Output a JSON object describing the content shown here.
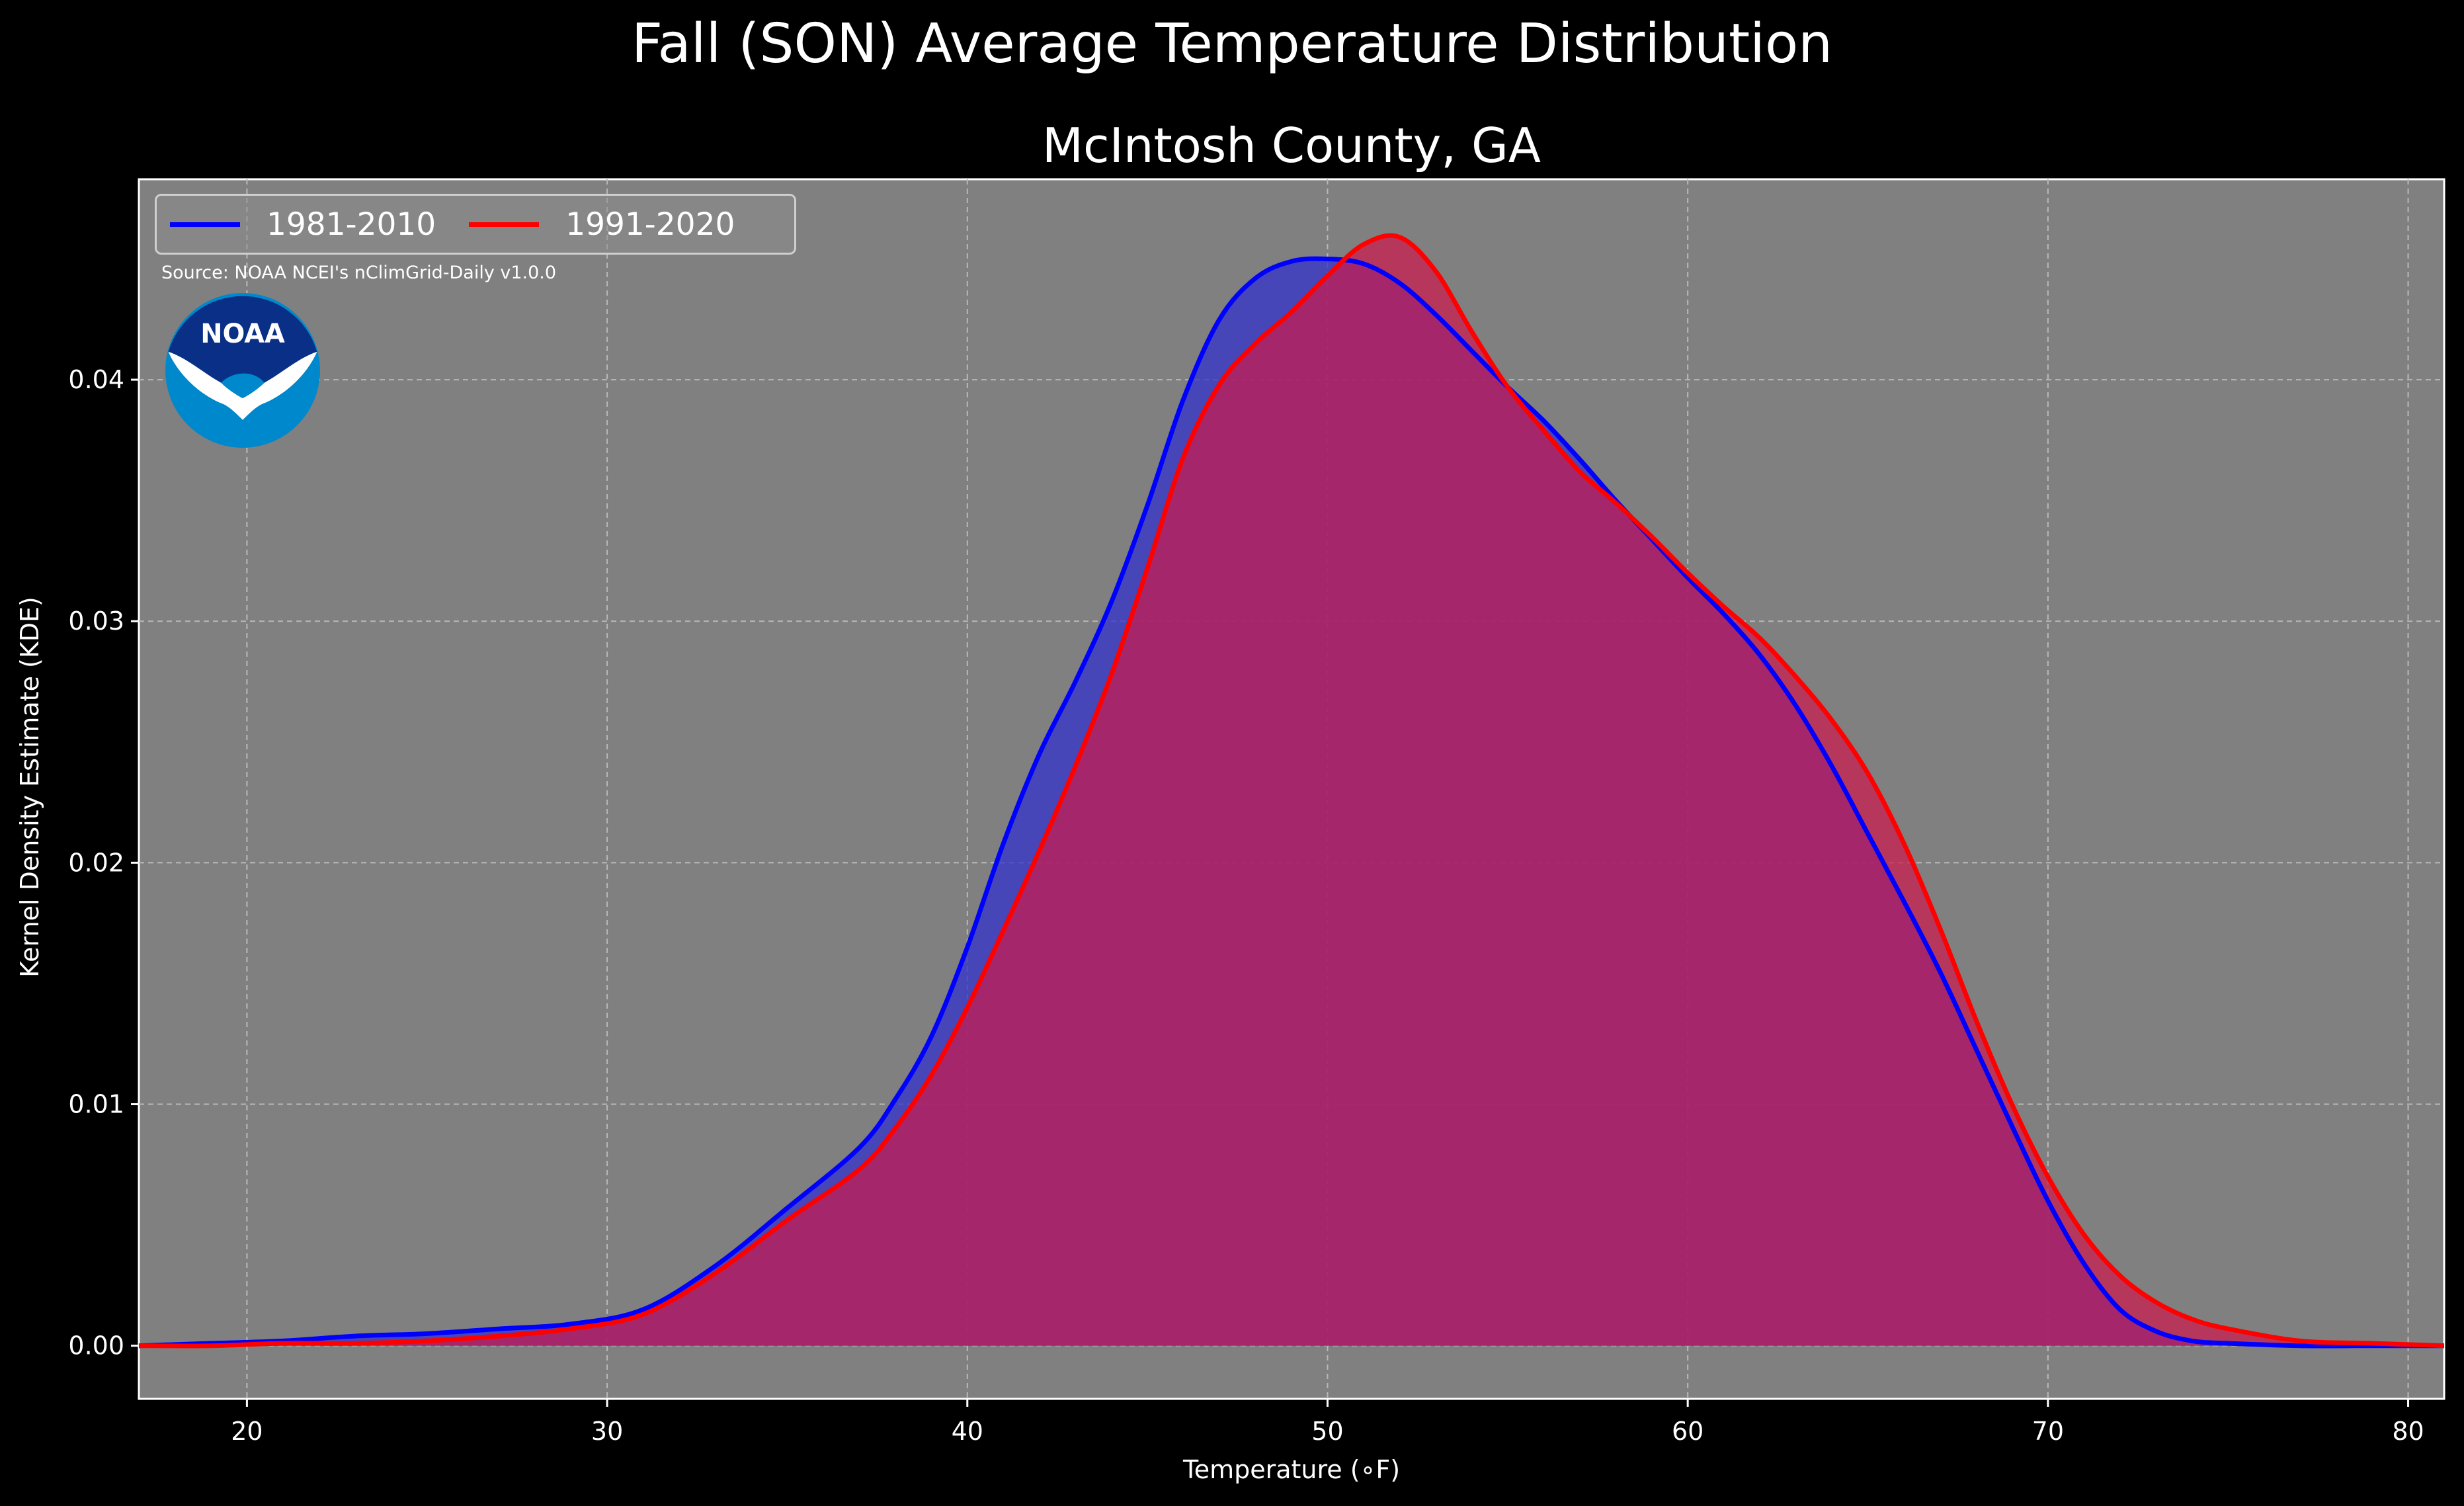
{
  "title": "Fall (SON) Average Temperature Distribution",
  "subtitle": "McIntosh County, GA",
  "source_note": "Source: NOAA NCEI's nClimGrid-Daily v1.0.0",
  "logo_text": "NOAA",
  "colors": {
    "background": "#000000",
    "plot_bg": "#808080",
    "series_1981": "#0000ff",
    "series_1991": "#ff0000",
    "fill_1981": "#3333cc",
    "fill_1991": "#cc1a4d"
  },
  "chart_data": {
    "type": "area",
    "xlabel": "Temperature (∘F)",
    "ylabel": "Kernel Density Estimate (KDE)",
    "xlim": [
      17,
      81
    ],
    "ylim": [
      -0.0022,
      0.0483
    ],
    "xticks": [
      "20",
      "30",
      "40",
      "50",
      "60",
      "70",
      "80"
    ],
    "yticks": [
      "0.00",
      "0.01",
      "0.02",
      "0.03",
      "0.04"
    ],
    "grid": true,
    "legend_position": "top-left",
    "series": [
      {
        "name": "1981-2010",
        "color": "#0000ff",
        "x": [
          17,
          19,
          21,
          23,
          25,
          27,
          29,
          31,
          33,
          35,
          37,
          38,
          39,
          40,
          41,
          42,
          43,
          44,
          45,
          46,
          47,
          48,
          49,
          50,
          51,
          52,
          53,
          54,
          55,
          56,
          57,
          58,
          59,
          60,
          61,
          62,
          63,
          64,
          65,
          66,
          67,
          68,
          69,
          70,
          71,
          72,
          73,
          74,
          75,
          77,
          79,
          81
        ],
        "y": [
          0,
          0.0001,
          0.0002,
          0.0004,
          0.0005,
          0.0007,
          0.0009,
          0.0015,
          0.0033,
          0.0057,
          0.0082,
          0.0102,
          0.0128,
          0.0165,
          0.0208,
          0.0245,
          0.0275,
          0.0308,
          0.0348,
          0.0392,
          0.0425,
          0.0442,
          0.0449,
          0.045,
          0.0448,
          0.044,
          0.0427,
          0.0412,
          0.0397,
          0.0383,
          0.0367,
          0.035,
          0.0334,
          0.0318,
          0.0303,
          0.0286,
          0.0265,
          0.024,
          0.0212,
          0.0184,
          0.0155,
          0.0123,
          0.0091,
          0.006,
          0.0034,
          0.0015,
          0.0006,
          0.0002,
          0.0001,
          0,
          0,
          0
        ]
      },
      {
        "name": "1991-2020",
        "color": "#ff0000",
        "x": [
          17,
          19,
          21,
          23,
          25,
          27,
          29,
          31,
          33,
          35,
          37,
          38,
          39,
          40,
          41,
          42,
          43,
          44,
          45,
          46,
          47,
          48,
          49,
          50,
          51,
          52,
          53,
          54,
          55,
          56,
          57,
          58,
          59,
          60,
          61,
          62,
          63,
          64,
          65,
          66,
          67,
          68,
          69,
          70,
          71,
          72,
          73,
          74,
          75,
          77,
          79,
          81
        ],
        "y": [
          0,
          0,
          0.0001,
          0.0001,
          0.0002,
          0.0004,
          0.0007,
          0.0013,
          0.003,
          0.0052,
          0.0073,
          0.009,
          0.0112,
          0.014,
          0.0172,
          0.0205,
          0.024,
          0.0278,
          0.0322,
          0.0368,
          0.0398,
          0.0415,
          0.0428,
          0.0443,
          0.0456,
          0.0459,
          0.0445,
          0.042,
          0.0397,
          0.0379,
          0.0362,
          0.0349,
          0.0335,
          0.032,
          0.0306,
          0.0293,
          0.0277,
          0.0259,
          0.0237,
          0.0208,
          0.0173,
          0.0135,
          0.01,
          0.007,
          0.0046,
          0.0029,
          0.0018,
          0.0011,
          0.0007,
          0.0002,
          0.0001,
          0
        ]
      }
    ]
  }
}
